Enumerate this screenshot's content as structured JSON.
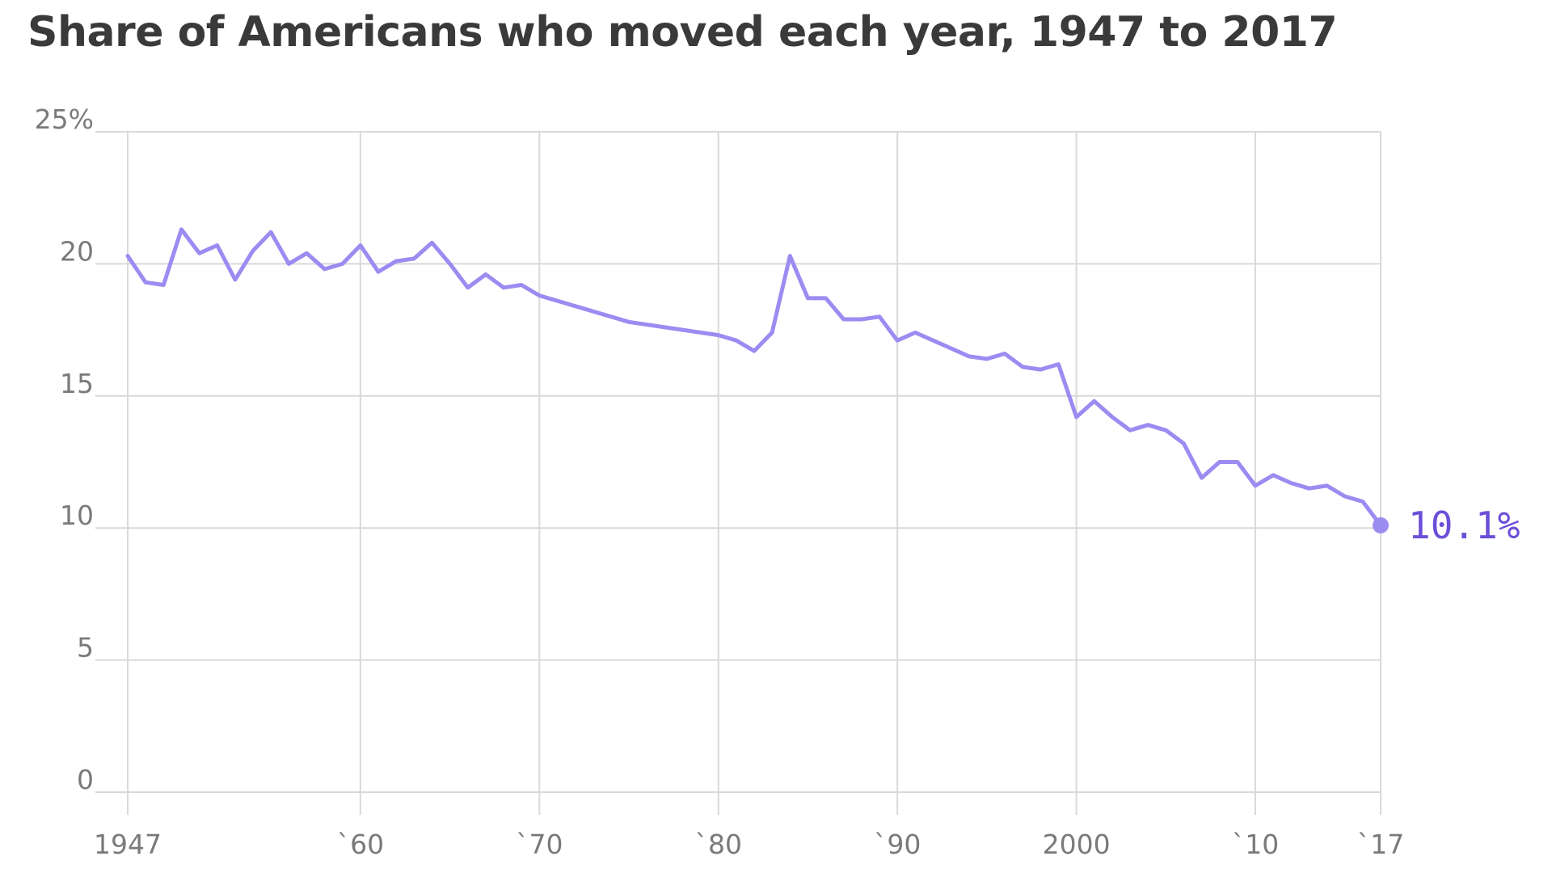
{
  "chart_data": {
    "type": "line",
    "title": "Share of Americans who moved each year, 1947 to 2017",
    "xlabel": "",
    "ylabel": "",
    "xlim": [
      1947,
      2017
    ],
    "ylim": [
      0,
      25
    ],
    "grid": true,
    "y_ticks": [
      {
        "value": 25,
        "label": "25%"
      },
      {
        "value": 20,
        "label": "20"
      },
      {
        "value": 15,
        "label": "15"
      },
      {
        "value": 10,
        "label": "10"
      },
      {
        "value": 5,
        "label": "5"
      },
      {
        "value": 0,
        "label": "0"
      }
    ],
    "x_ticks": [
      {
        "value": 1947,
        "label": "1947"
      },
      {
        "value": 1960,
        "label": "`60"
      },
      {
        "value": 1970,
        "label": "`70"
      },
      {
        "value": 1980,
        "label": "`80"
      },
      {
        "value": 1990,
        "label": "`90"
      },
      {
        "value": 2000,
        "label": "2000"
      },
      {
        "value": 2010,
        "label": "`10"
      },
      {
        "value": 2017,
        "label": "`17"
      }
    ],
    "series": [
      {
        "color": "#9b8cf2",
        "x": [
          1947,
          1948,
          1949,
          1950,
          1951,
          1952,
          1953,
          1954,
          1955,
          1956,
          1957,
          1958,
          1959,
          1960,
          1961,
          1962,
          1963,
          1964,
          1965,
          1966,
          1967,
          1968,
          1969,
          1970,
          1975,
          1980,
          1981,
          1982,
          1983,
          1984,
          1985,
          1986,
          1987,
          1988,
          1989,
          1990,
          1991,
          1992,
          1993,
          1994,
          1995,
          1996,
          1997,
          1998,
          1999,
          2000,
          2001,
          2002,
          2003,
          2004,
          2005,
          2006,
          2007,
          2008,
          2009,
          2010,
          2011,
          2012,
          2013,
          2014,
          2015,
          2016,
          2017
        ],
        "y": [
          20.3,
          19.3,
          19.2,
          21.3,
          20.4,
          20.7,
          19.4,
          20.5,
          21.2,
          20.0,
          20.4,
          19.8,
          20.0,
          20.7,
          19.7,
          20.1,
          20.2,
          20.8,
          20.0,
          19.1,
          19.6,
          19.1,
          19.2,
          18.8,
          17.8,
          17.3,
          17.1,
          16.7,
          17.4,
          20.3,
          18.7,
          18.7,
          17.9,
          17.9,
          18.0,
          17.1,
          17.4,
          17.1,
          16.8,
          16.5,
          16.4,
          16.6,
          16.1,
          16.0,
          16.2,
          14.2,
          14.8,
          14.2,
          13.7,
          13.9,
          13.7,
          13.2,
          11.9,
          12.5,
          12.5,
          11.6,
          12.0,
          11.7,
          11.5,
          11.6,
          11.2,
          11.0,
          10.1
        ]
      }
    ],
    "end_label": "10.1%",
    "end_marker_color": "#9b8cf2",
    "end_label_color": "#6b4fd8"
  }
}
